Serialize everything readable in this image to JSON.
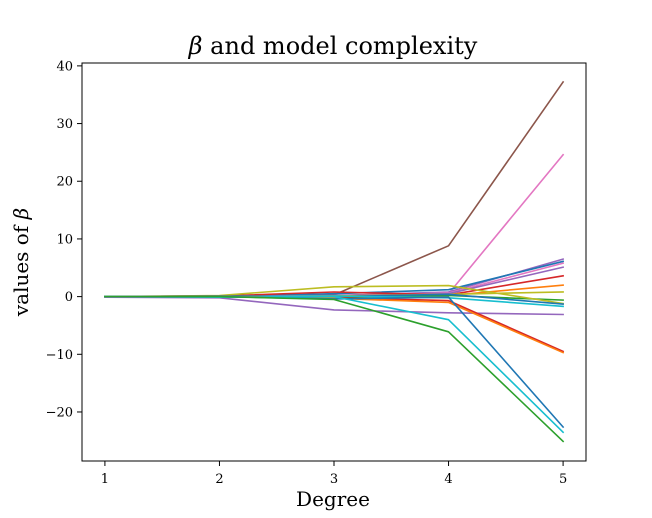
{
  "chart_data": {
    "type": "line",
    "title": {
      "symbol": "β",
      "rest": " and model complexity"
    },
    "xlabel": "Degree",
    "ylabel": {
      "rest": "values of ",
      "symbol": "β"
    },
    "x": [
      1,
      2,
      3,
      4,
      5
    ],
    "xlim": [
      0.8,
      5.2
    ],
    "ylim": [
      -28.5,
      40.5
    ],
    "xticks": [
      1,
      2,
      3,
      4,
      5
    ],
    "yticks": [
      -20,
      -10,
      0,
      10,
      20,
      30,
      40
    ],
    "ytick_labels": [
      "−20",
      "−10",
      "0",
      "10",
      "20",
      "30",
      "40"
    ],
    "grid": false,
    "legend": "none",
    "series": [
      {
        "color": "#8c564b",
        "values": [
          0,
          0,
          0.3,
          8.8,
          37.2
        ]
      },
      {
        "color": "#e377c2",
        "values": [
          0,
          0,
          0,
          0.5,
          24.6
        ]
      },
      {
        "color": "#9467bd",
        "values": [
          0,
          0.1,
          0.2,
          0.8,
          6.5
        ]
      },
      {
        "color": "#1f77b4",
        "values": [
          0,
          0,
          0.5,
          1.2,
          6.1
        ]
      },
      {
        "color": "#e377c2",
        "values": [
          0,
          0,
          0.1,
          0.6,
          5.8
        ]
      },
      {
        "color": "#9467bd",
        "values": [
          0,
          0.05,
          0.2,
          0.5,
          5.1
        ]
      },
      {
        "color": "#d62728",
        "values": [
          0,
          0.1,
          0.8,
          0.3,
          3.6
        ]
      },
      {
        "color": "#ff7f0e",
        "values": [
          0,
          0,
          0.1,
          0.2,
          2.0
        ]
      },
      {
        "color": "#bcbd22",
        "values": [
          0,
          0,
          0.1,
          0.4,
          0.8
        ]
      },
      {
        "color": "#2ca02c",
        "values": [
          0,
          0,
          -0.1,
          0.2,
          -0.6
        ]
      },
      {
        "color": "#bcbd22",
        "values": [
          0,
          0.2,
          1.7,
          1.9,
          -1.2
        ]
      },
      {
        "color": "#1f77b4",
        "values": [
          0,
          0.1,
          0,
          0.4,
          -1.3
        ]
      },
      {
        "color": "#17becf",
        "values": [
          0,
          0,
          0.1,
          -0.2,
          -1.7
        ]
      },
      {
        "color": "#9467bd",
        "values": [
          -0.1,
          -0.2,
          -2.3,
          -2.8,
          -3.1
        ]
      },
      {
        "color": "#d62728",
        "values": [
          0,
          0,
          -0.2,
          -0.7,
          -9.5
        ]
      },
      {
        "color": "#ff7f0e",
        "values": [
          0,
          0,
          -0.3,
          -1.0,
          -9.7
        ]
      },
      {
        "color": "#1f77b4",
        "values": [
          0,
          0,
          -0.4,
          -0.1,
          -22.6
        ]
      },
      {
        "color": "#17becf",
        "values": [
          0,
          -0.1,
          0,
          -4.0,
          -23.5
        ]
      },
      {
        "color": "#2ca02c",
        "values": [
          0,
          0,
          -0.5,
          -6.1,
          -25.1
        ]
      }
    ]
  }
}
